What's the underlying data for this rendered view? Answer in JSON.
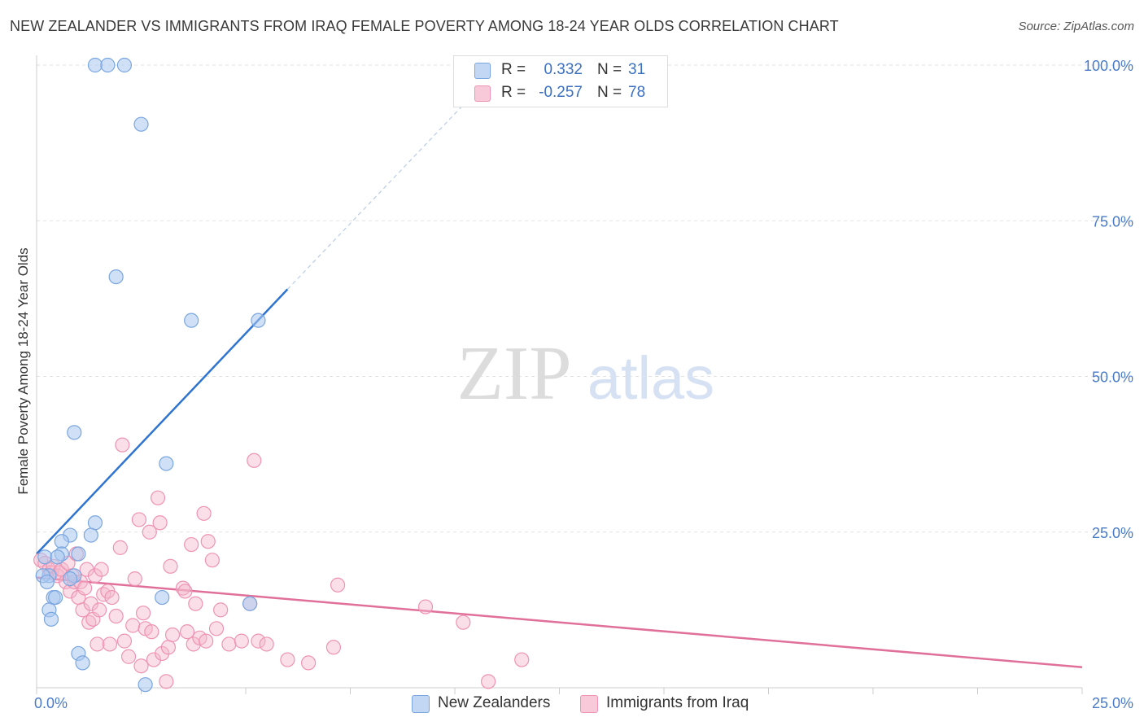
{
  "header": {
    "title": "NEW ZEALANDER VS IMMIGRANTS FROM IRAQ FEMALE POVERTY AMONG 18-24 YEAR OLDS CORRELATION CHART",
    "source": "Source: ZipAtlas.com"
  },
  "watermark": {
    "zip": "ZIP",
    "atlas": "atlas"
  },
  "legend": {
    "rows": [
      {
        "r_label": "R =",
        "r_value": "0.332",
        "n_label": "N =",
        "n_value": "31"
      },
      {
        "r_label": "R =",
        "r_value": "-0.257",
        "n_label": "N =",
        "n_value": "78"
      }
    ]
  },
  "bottom_legend": {
    "series_a": "New Zealanders",
    "series_b": "Immigrants from Iraq"
  },
  "colors": {
    "blue_fill": "#aac8f0",
    "blue_stroke": "#7aa6e0",
    "blue_line": "#2f74d0",
    "pink_fill": "#f5b8cc",
    "pink_stroke": "#ee93b3",
    "pink_line": "#e0709a",
    "tick_label": "#4a7bc8",
    "grid": "#e2e2e2"
  },
  "chart_data": {
    "type": "scatter",
    "title": "NEW ZEALANDER VS IMMIGRANTS FROM IRAQ FEMALE POVERTY AMONG 18-24 YEAR OLDS CORRELATION CHART",
    "xlabel": "",
    "ylabel": "Female Poverty Among 18-24 Year Olds",
    "xlim": [
      0,
      25
    ],
    "ylim": [
      0,
      100
    ],
    "x_tick_labels": [
      "0.0%",
      "25.0%"
    ],
    "y_tick_labels": [
      "25.0%",
      "50.0%",
      "75.0%",
      "100.0%"
    ],
    "y_ticks": [
      25,
      50,
      75,
      100
    ],
    "grid": true,
    "series": [
      {
        "name": "New Zealanders",
        "r": 0.332,
        "n": 31,
        "points": [
          [
            1.4,
            100
          ],
          [
            1.7,
            100
          ],
          [
            2.1,
            100
          ],
          [
            2.5,
            90.5
          ],
          [
            1.9,
            66
          ],
          [
            3.7,
            59
          ],
          [
            5.3,
            59
          ],
          [
            0.9,
            41
          ],
          [
            3.1,
            36
          ],
          [
            1.4,
            26.5
          ],
          [
            1.3,
            24.5
          ],
          [
            0.8,
            24.5
          ],
          [
            0.6,
            23.5
          ],
          [
            1.0,
            21.5
          ],
          [
            0.6,
            21.5
          ],
          [
            0.2,
            21
          ],
          [
            0.5,
            21
          ],
          [
            0.3,
            18
          ],
          [
            0.15,
            18
          ],
          [
            0.9,
            18
          ],
          [
            0.8,
            17.5
          ],
          [
            0.25,
            17
          ],
          [
            0.4,
            14.5
          ],
          [
            0.45,
            14.5
          ],
          [
            3.0,
            14.5
          ],
          [
            5.1,
            13.5
          ],
          [
            0.3,
            12.5
          ],
          [
            0.35,
            11
          ],
          [
            1.0,
            5.5
          ],
          [
            1.1,
            4
          ],
          [
            2.6,
            0.5
          ]
        ],
        "trend": {
          "x": [
            0,
            6
          ],
          "y": [
            21.5,
            64
          ]
        },
        "trend_dashed": {
          "x": [
            6,
            10.4
          ],
          "y": [
            64,
            95
          ]
        }
      },
      {
        "name": "Immigrants from Iraq",
        "r": -0.257,
        "n": 78,
        "points": [
          [
            0.1,
            20.5
          ],
          [
            0.2,
            20
          ],
          [
            0.3,
            19
          ],
          [
            0.35,
            18.5
          ],
          [
            0.4,
            19.5
          ],
          [
            0.5,
            18
          ],
          [
            0.55,
            18.5
          ],
          [
            0.6,
            19
          ],
          [
            0.7,
            17
          ],
          [
            0.75,
            20
          ],
          [
            0.8,
            15.5
          ],
          [
            0.85,
            18
          ],
          [
            0.9,
            17
          ],
          [
            0.95,
            21.5
          ],
          [
            1.0,
            14.5
          ],
          [
            1.05,
            17
          ],
          [
            1.1,
            12.5
          ],
          [
            1.15,
            16
          ],
          [
            1.2,
            19
          ],
          [
            1.25,
            10.5
          ],
          [
            1.3,
            13.5
          ],
          [
            1.35,
            11
          ],
          [
            1.4,
            18
          ],
          [
            1.45,
            7
          ],
          [
            1.5,
            12.5
          ],
          [
            1.55,
            19
          ],
          [
            1.6,
            15
          ],
          [
            1.7,
            15.5
          ],
          [
            1.75,
            7
          ],
          [
            1.8,
            14.5
          ],
          [
            1.9,
            11.5
          ],
          [
            2.0,
            22.5
          ],
          [
            2.05,
            39
          ],
          [
            2.1,
            7.5
          ],
          [
            2.2,
            5
          ],
          [
            2.3,
            10
          ],
          [
            2.35,
            17.5
          ],
          [
            2.45,
            27
          ],
          [
            2.5,
            3.5
          ],
          [
            2.55,
            12
          ],
          [
            2.6,
            9.5
          ],
          [
            2.7,
            25
          ],
          [
            2.75,
            9
          ],
          [
            2.8,
            4.5
          ],
          [
            2.9,
            30.5
          ],
          [
            2.95,
            26.5
          ],
          [
            3.0,
            5.5
          ],
          [
            3.1,
            1
          ],
          [
            3.15,
            6.5
          ],
          [
            3.2,
            19.5
          ],
          [
            3.25,
            8.5
          ],
          [
            3.5,
            16
          ],
          [
            3.55,
            15.5
          ],
          [
            3.6,
            9
          ],
          [
            3.7,
            23
          ],
          [
            3.75,
            7
          ],
          [
            3.8,
            13.5
          ],
          [
            3.9,
            8
          ],
          [
            4.0,
            28
          ],
          [
            4.05,
            7.5
          ],
          [
            4.1,
            23.5
          ],
          [
            4.2,
            20.5
          ],
          [
            4.3,
            9.5
          ],
          [
            4.4,
            12.5
          ],
          [
            4.6,
            7
          ],
          [
            4.9,
            7.5
          ],
          [
            5.1,
            13.5
          ],
          [
            5.2,
            36.5
          ],
          [
            5.3,
            7.5
          ],
          [
            5.5,
            7
          ],
          [
            6.0,
            4.5
          ],
          [
            6.5,
            4
          ],
          [
            7.1,
            6.5
          ],
          [
            7.2,
            16.5
          ],
          [
            9.3,
            13
          ],
          [
            10.2,
            10.5
          ],
          [
            10.8,
            1
          ],
          [
            11.6,
            4.5
          ]
        ],
        "trend": {
          "x": [
            0,
            25
          ],
          "y": [
            17.7,
            3.3
          ]
        }
      }
    ]
  }
}
